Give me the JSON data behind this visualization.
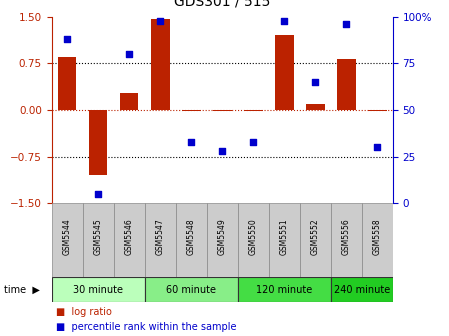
{
  "title": "GDS301 / 515",
  "samples": [
    "GSM5544",
    "GSM5545",
    "GSM5546",
    "GSM5547",
    "GSM5548",
    "GSM5549",
    "GSM5550",
    "GSM5551",
    "GSM5552",
    "GSM5556",
    "GSM5558"
  ],
  "log_ratio": [
    0.85,
    -1.05,
    0.28,
    1.47,
    -0.02,
    -0.02,
    -0.02,
    1.2,
    0.1,
    0.82,
    -0.02
  ],
  "percentile": [
    88,
    5,
    80,
    98,
    33,
    28,
    33,
    98,
    65,
    96,
    30
  ],
  "group_defs": [
    {
      "label": "30 minute",
      "start": 0,
      "end": 3,
      "color": "#bbffbb"
    },
    {
      "label": "60 minute",
      "start": 3,
      "end": 6,
      "color": "#88ee88"
    },
    {
      "label": "120 minute",
      "start": 6,
      "end": 9,
      "color": "#44dd44"
    },
    {
      "label": "240 minute",
      "start": 9,
      "end": 11,
      "color": "#22cc22"
    }
  ],
  "bar_color": "#bb2200",
  "dot_color": "#0000cc",
  "ylim": [
    -1.5,
    1.5
  ],
  "y2lim": [
    0,
    100
  ],
  "yticks": [
    -1.5,
    -0.75,
    0,
    0.75,
    1.5
  ],
  "y2ticks": [
    0,
    25,
    50,
    75,
    100
  ],
  "sample_row_color": "#cccccc",
  "bar_width": 0.6,
  "title_fontsize": 10,
  "tick_fontsize": 7.5
}
